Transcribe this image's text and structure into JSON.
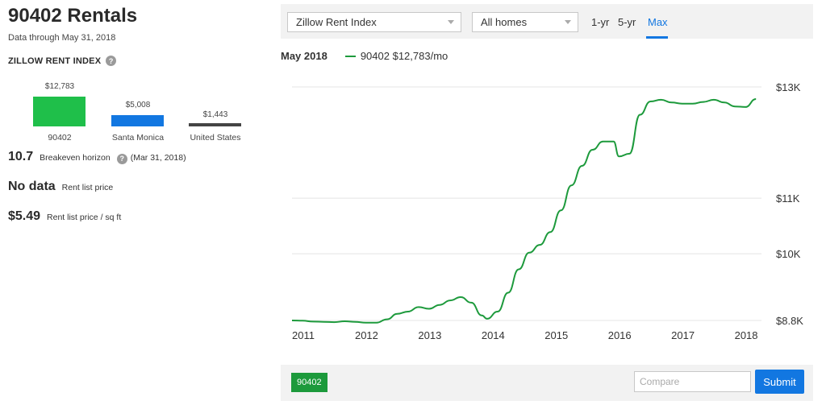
{
  "header": {
    "title": "90402 Rentals",
    "data_through": "Data through May 31, 2018"
  },
  "rent_index": {
    "heading": "ZILLOW RENT INDEX",
    "help_glyph": "?",
    "bars": [
      {
        "value_label": "$12,783",
        "label": "90402",
        "value": 12783,
        "color": "#1fbf4a"
      },
      {
        "value_label": "$5,008",
        "label": "Santa Monica",
        "value": 5008,
        "color": "#1277e1"
      },
      {
        "value_label": "$1,443",
        "label": "United States",
        "value": 1443,
        "color": "#444444"
      }
    ]
  },
  "stats": {
    "breakeven": {
      "value": "10.7",
      "label": "Breakeven horizon",
      "date": "(Mar 31, 2018)"
    },
    "rent_list": {
      "value": "No data",
      "label": "Rent list price"
    },
    "rent_sqft": {
      "value": "$5.49",
      "label": "Rent list price / sq ft"
    }
  },
  "toolbar": {
    "index_select": "Zillow Rent Index",
    "home_type_select": "All homes",
    "ranges": [
      "1-yr",
      "5-yr",
      "Max"
    ],
    "active_range": "Max"
  },
  "legend": {
    "date": "May 2018",
    "series_label": "90402 $12,783/mo"
  },
  "footer": {
    "chip_label": "90402",
    "compare_placeholder": "Compare",
    "submit_label": "Submit"
  },
  "colors": {
    "series": "#1d9a3c",
    "accent": "#1277e1"
  },
  "chart_data": {
    "type": "line",
    "series": [
      {
        "name": "90402",
        "x": [
          "2011-01",
          "2011-03",
          "2011-05",
          "2011-07",
          "2011-09",
          "2011-11",
          "2012-01",
          "2012-03",
          "2012-05",
          "2012-07",
          "2012-09",
          "2012-11",
          "2013-01",
          "2013-03",
          "2013-05",
          "2013-07",
          "2013-09",
          "2013-11",
          "2014-01",
          "2014-02",
          "2014-04",
          "2014-06",
          "2014-08",
          "2014-10",
          "2014-12",
          "2015-02",
          "2015-04",
          "2015-06",
          "2015-08",
          "2015-10",
          "2015-12",
          "2016-02",
          "2016-03",
          "2016-05",
          "2016-07",
          "2016-09",
          "2016-11",
          "2017-01",
          "2017-03",
          "2017-05",
          "2017-07",
          "2017-09",
          "2017-11",
          "2018-01",
          "2018-03",
          "2018-05"
        ],
        "values": [
          8800,
          8795,
          8780,
          8775,
          8770,
          8785,
          8775,
          8760,
          8760,
          8820,
          8920,
          8960,
          9040,
          9010,
          9080,
          9160,
          9220,
          9120,
          8890,
          8830,
          8960,
          9300,
          9720,
          10020,
          10160,
          10390,
          10780,
          11230,
          11580,
          11870,
          12020,
          12020,
          11750,
          11800,
          12500,
          12740,
          12770,
          12720,
          12700,
          12700,
          12730,
          12770,
          12720,
          12650,
          12640,
          12783
        ]
      }
    ],
    "xlabel": "",
    "ylabel": "",
    "x_ticks": [
      "2011",
      "2012",
      "2013",
      "2014",
      "2015",
      "2016",
      "2017",
      "2018"
    ],
    "y_ticks": [
      {
        "value": 13000,
        "label": "$13K"
      },
      {
        "value": 11000,
        "label": "$11K"
      },
      {
        "value": 10000,
        "label": "$10K"
      },
      {
        "value": 8800,
        "label": "$8.8K"
      }
    ],
    "ylim": [
      8800,
      13000
    ],
    "grid": true,
    "legend_position": "top-left"
  }
}
